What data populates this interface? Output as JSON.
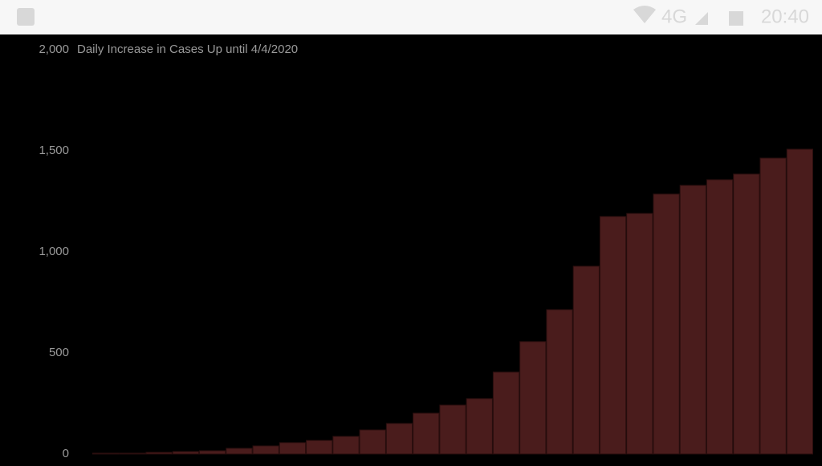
{
  "status_bar": {
    "network": "4G",
    "time": "20:40"
  },
  "chart_data": {
    "type": "bar",
    "title": "Daily Increase in Cases Up until 4/4/2020",
    "values": [
      4,
      4,
      8,
      12,
      16,
      28,
      40,
      56,
      67,
      87,
      119,
      151,
      202,
      242,
      274,
      405,
      556,
      714,
      929,
      1175,
      1190,
      1286,
      1329,
      1357,
      1385,
      1464,
      1508
    ],
    "color": "#4a1c1c",
    "ylim": [
      0,
      2000
    ],
    "yticks": [
      0,
      500,
      {
        "value": 1000,
        "label": "1,000"
      },
      {
        "value": 1500,
        "label": "1,500"
      },
      {
        "value": 2000,
        "label": "2,000"
      }
    ],
    "grid": false
  }
}
